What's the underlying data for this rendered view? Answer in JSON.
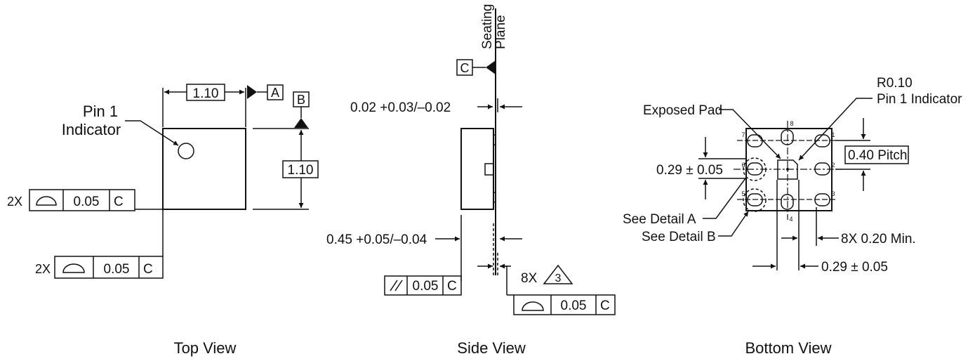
{
  "views": {
    "top": {
      "caption": "Top View",
      "pin1_label_line1": "Pin 1",
      "pin1_label_line2": "Indicator",
      "dim_width": "1.10",
      "dim_height": "1.10",
      "datum_a": "A",
      "datum_b": "B",
      "fcf1_count": "2X",
      "fcf1_value": "0.05",
      "fcf1_datum": "C",
      "fcf2_count": "2X",
      "fcf2_value": "0.05",
      "fcf2_datum": "C"
    },
    "side": {
      "caption": "Side View",
      "seating_plane_line1": "Seating",
      "seating_plane_line2": "Plane",
      "datum_c": "C",
      "dim_standoff": "0.02 +0.03/–0.02",
      "dim_thickness": "0.45 +0.05/–0.04",
      "parallel_value": "0.05",
      "parallel_datum": "C",
      "note_count": "8X",
      "note_number": "3",
      "profile_value": "0.05",
      "profile_datum": "C"
    },
    "bottom": {
      "caption": "Bottom View",
      "exposed_pad": "Exposed Pad",
      "radius_line1": "R0.10",
      "radius_line2": "Pin 1 Indicator",
      "pitch": "0.40 Pitch",
      "pad_width": "0.29 ± 0.05",
      "detail_a": "See Detail A",
      "detail_b": "See Detail B",
      "min_length": "8X 0.20 Min.",
      "pad_length": "0.29 ± 0.05",
      "pin_numbers": [
        "1",
        "2",
        "3",
        "4",
        "5",
        "6",
        "7",
        "8"
      ]
    }
  }
}
